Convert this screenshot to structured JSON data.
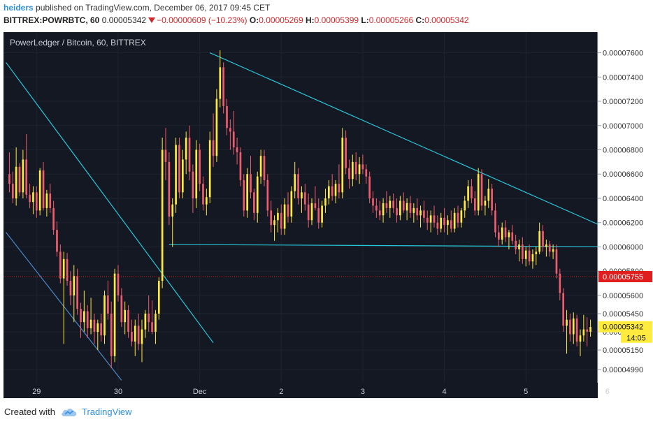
{
  "header": {
    "username": "heiders",
    "published_text": "published on TradingView.com, December 06, 2017 09:45 CET",
    "symbol": "BITTREX:POWRBTC, 60",
    "last": "0.00005342",
    "change": "−0.00000609 (−10.23%)",
    "o_label": "O:",
    "o_value": "0.00005269",
    "h_label": "H:",
    "h_value": "0.00005399",
    "l_label": "L:",
    "l_value": "0.00005266",
    "c_label": "C:",
    "c_value": "0.00005342"
  },
  "chart_data": {
    "type": "candlestick",
    "title": "PowerLedger / Bitcoin, 60, BITTREX",
    "timeframe": "60",
    "exchange": "BITTREX",
    "ylim": [
      4.88e-05,
      7.77e-05
    ],
    "x_tick_labels": [
      "29",
      "30",
      "Dec",
      "2",
      "3",
      "4",
      "5",
      "6"
    ],
    "x_tick_index": [
      8,
      32,
      56,
      80,
      104,
      128,
      152,
      176
    ],
    "y_tick_labels": [
      "0.00007600",
      "0.00007400",
      "0.00007200",
      "0.00007000",
      "0.00006800",
      "0.00006600",
      "0.00006400",
      "0.00006200",
      "0.00006000",
      "0.00005800",
      "0.00005600",
      "0.00005450",
      "0.00005300",
      "0.00005150",
      "0.00004990"
    ],
    "y_tick_values": [
      7.6e-05,
      7.4e-05,
      7.2e-05,
      7e-05,
      6.8e-05,
      6.6e-05,
      6.4e-05,
      6.2e-05,
      6e-05,
      5.8e-05,
      5.6e-05,
      5.45e-05,
      5.3e-05,
      5.15e-05,
      4.99e-05
    ],
    "price_line": {
      "value": 5.755e-05,
      "label": "0.00005755",
      "color": "#e01e1e"
    },
    "last_price": {
      "value": 5.342e-05,
      "label": "0.00005342",
      "countdown": "14:05",
      "color": "#ffeb3b"
    },
    "trendlines": [
      {
        "from": [
          -1,
          7.52e-05
        ],
        "to": [
          60,
          5.21e-05
        ],
        "color": "#26c6da"
      },
      {
        "from": [
          -1,
          6.12e-05
        ],
        "to": [
          33,
          4.9e-05
        ],
        "color": "#4a86c8"
      },
      {
        "from": [
          59,
          7.6e-05
        ],
        "to": [
          185,
          6.04e-05
        ],
        "color": "#26c6da"
      },
      {
        "from": [
          47,
          6.02e-05
        ],
        "to": [
          185,
          6e-05
        ],
        "color": "#26c6da"
      }
    ],
    "candle_colors": {
      "up": "#ffeb3b",
      "down": "#ef5c6e"
    },
    "candles": [
      [
        6.6e-05,
        6.78e-05,
        6.45e-05,
        6.52e-05
      ],
      [
        6.52e-05,
        6.62e-05,
        6.36e-05,
        6.4e-05
      ],
      [
        6.4e-05,
        6.82e-05,
        6.34e-05,
        6.66e-05
      ],
      [
        6.66e-05,
        6.69e-05,
        6.42e-05,
        6.45e-05
      ],
      [
        6.45e-05,
        6.8e-05,
        6.4e-05,
        6.72e-05
      ],
      [
        6.72e-05,
        6.93e-05,
        6.4e-05,
        6.43e-05
      ],
      [
        6.43e-05,
        6.52e-05,
        6.32e-05,
        6.37e-05
      ],
      [
        6.37e-05,
        6.5e-05,
        6.27e-05,
        6.45e-05
      ],
      [
        6.45e-05,
        6.5e-05,
        6.24e-05,
        6.3e-05
      ],
      [
        6.3e-05,
        6.65e-05,
        6.26e-05,
        6.63e-05
      ],
      [
        6.63e-05,
        6.7e-05,
        6.3e-05,
        6.32e-05
      ],
      [
        6.32e-05,
        6.47e-05,
        6.25e-05,
        6.44e-05
      ],
      [
        6.44e-05,
        6.52e-05,
        6.28e-05,
        6.32e-05
      ],
      [
        6.32e-05,
        6.38e-05,
        6.1e-05,
        6.14e-05
      ],
      [
        6.14e-05,
        6.21e-05,
        5.92e-05,
        5.96e-05
      ],
      [
        5.96e-05,
        6.02e-05,
        5.7e-05,
        5.74e-05
      ],
      [
        5.74e-05,
        5.96e-05,
        5.2e-05,
        5.9e-05
      ],
      [
        5.9e-05,
        5.95e-05,
        5.68e-05,
        5.72e-05
      ],
      [
        5.72e-05,
        5.8e-05,
        5.52e-05,
        5.6e-05
      ],
      [
        5.6e-05,
        5.85e-05,
        5.38e-05,
        5.76e-05
      ],
      [
        5.76e-05,
        5.82e-05,
        5.44e-05,
        5.49e-05
      ],
      [
        5.49e-05,
        5.54e-05,
        5.25e-05,
        5.38e-05
      ],
      [
        5.38e-05,
        5.64e-05,
        5.3e-05,
        5.47e-05
      ],
      [
        5.47e-05,
        5.52e-05,
        5.25e-05,
        5.33e-05
      ],
      [
        5.33e-05,
        5.58e-05,
        5.28e-05,
        5.4e-05
      ],
      [
        5.4e-05,
        5.45e-05,
        5.2e-05,
        5.3e-05
      ],
      [
        5.3e-05,
        5.4e-05,
        5.15e-05,
        5.37e-05
      ],
      [
        5.37e-05,
        5.45e-05,
        5.22e-05,
        5.27e-05
      ],
      [
        5.27e-05,
        5.64e-05,
        5.2e-05,
        5.6e-05
      ],
      [
        5.6e-05,
        5.72e-05,
        5.4e-05,
        5.45e-05
      ],
      [
        5.45e-05,
        5.55e-05,
        5e-05,
        5.1e-05
      ],
      [
        5.1e-05,
        5.82e-05,
        5.05e-05,
        5.78e-05
      ],
      [
        5.78e-05,
        5.85e-05,
        5.55e-05,
        5.6e-05
      ],
      [
        5.6e-05,
        5.66e-05,
        5.34e-05,
        5.38e-05
      ],
      [
        5.38e-05,
        5.55e-05,
        5.28e-05,
        5.48e-05
      ],
      [
        5.48e-05,
        5.52e-05,
        5.25e-05,
        5.3e-05
      ],
      [
        5.3e-05,
        5.4e-05,
        5.18e-05,
        5.22e-05
      ],
      [
        5.22e-05,
        5.4e-05,
        5.1e-05,
        5.35e-05
      ],
      [
        5.35e-05,
        5.45e-05,
        5.15e-05,
        5.2e-05
      ],
      [
        5.2e-05,
        5.4e-05,
        5.05e-05,
        5.32e-05
      ],
      [
        5.32e-05,
        5.48e-05,
        5.25e-05,
        5.45e-05
      ],
      [
        5.45e-05,
        5.6e-05,
        5.3e-05,
        5.38e-05
      ],
      [
        5.38e-05,
        5.56e-05,
        5.28e-05,
        5.3e-05
      ],
      [
        5.3e-05,
        5.48e-05,
        5.2e-05,
        5.45e-05
      ],
      [
        5.45e-05,
        5.75e-05,
        5.4e-05,
        5.72e-05
      ],
      [
        5.72e-05,
        6.9e-05,
        5.66e-05,
        6.8e-05
      ],
      [
        6.8e-05,
        6.98e-05,
        6.55e-05,
        6.7e-05
      ],
      [
        6.7e-05,
        6.78e-05,
        6.18e-05,
        6.25e-05
      ],
      [
        6.25e-05,
        6.4e-05,
        6e-05,
        6.35e-05
      ],
      [
        6.35e-05,
        6.9e-05,
        6.28e-05,
        6.84e-05
      ],
      [
        6.84e-05,
        6.9e-05,
        6.4e-05,
        6.45e-05
      ],
      [
        6.45e-05,
        6.8e-05,
        6.4e-05,
        6.72e-05
      ],
      [
        6.72e-05,
        6.95e-05,
        6.6e-05,
        6.9e-05
      ],
      [
        6.9e-05,
        7e-05,
        6.55e-05,
        6.62e-05
      ],
      [
        6.62e-05,
        6.68e-05,
        6.28e-05,
        6.4e-05
      ],
      [
        6.4e-05,
        6.88e-05,
        6.32e-05,
        6.8e-05
      ],
      [
        6.8e-05,
        6.85e-05,
        6.46e-05,
        6.52e-05
      ],
      [
        6.52e-05,
        6.58e-05,
        6.3e-05,
        6.35e-05
      ],
      [
        6.35e-05,
        6.48e-05,
        6.26e-05,
        6.41e-05
      ],
      [
        6.41e-05,
        6.95e-05,
        6.36e-05,
        6.88e-05
      ],
      [
        6.88e-05,
        7.1e-05,
        6.66e-05,
        6.75e-05
      ],
      [
        6.75e-05,
        7.3e-05,
        6.7e-05,
        7.22e-05
      ],
      [
        7.22e-05,
        7.62e-05,
        7.15e-05,
        7.48e-05
      ],
      [
        7.48e-05,
        7.52e-05,
        7.1e-05,
        7.16e-05
      ],
      [
        7.16e-05,
        7.22e-05,
        6.92e-05,
        6.98e-05
      ],
      [
        6.98e-05,
        7.05e-05,
        6.8e-05,
        6.95e-05
      ],
      [
        6.95e-05,
        7.12e-05,
        6.76e-05,
        6.82e-05
      ],
      [
        6.82e-05,
        6.9e-05,
        6.68e-05,
        6.78e-05
      ],
      [
        6.78e-05,
        6.82e-05,
        6.5e-05,
        6.55e-05
      ],
      [
        6.55e-05,
        6.6e-05,
        6.25e-05,
        6.3e-05
      ],
      [
        6.3e-05,
        6.65e-05,
        6.24e-05,
        6.6e-05
      ],
      [
        6.6e-05,
        6.75e-05,
        6.4e-05,
        6.45e-05
      ],
      [
        6.45e-05,
        6.48e-05,
        6.22e-05,
        6.28e-05
      ],
      [
        6.28e-05,
        6.62e-05,
        6.2e-05,
        6.58e-05
      ],
      [
        6.58e-05,
        6.8e-05,
        6.52e-05,
        6.75e-05
      ],
      [
        6.75e-05,
        6.8e-05,
        6.5e-05,
        6.55e-05
      ],
      [
        6.55e-05,
        6.6e-05,
        6.25e-05,
        6.3e-05
      ],
      [
        6.3e-05,
        6.38e-05,
        6.12e-05,
        6.18e-05
      ],
      [
        6.18e-05,
        6.26e-05,
        6.05e-05,
        6.22e-05
      ],
      [
        6.22e-05,
        6.32e-05,
        6.12e-05,
        6.28e-05
      ],
      [
        6.28e-05,
        6.35e-05,
        6.1e-05,
        6.15e-05
      ],
      [
        6.15e-05,
        6.4e-05,
        6.1e-05,
        6.35e-05
      ],
      [
        6.35e-05,
        6.45e-05,
        6.2e-05,
        6.25e-05
      ],
      [
        6.25e-05,
        6.5e-05,
        6.2e-05,
        6.46e-05
      ],
      [
        6.46e-05,
        6.7e-05,
        6.4e-05,
        6.6e-05
      ],
      [
        6.6e-05,
        6.65e-05,
        6.35e-05,
        6.4e-05
      ],
      [
        6.4e-05,
        6.5e-05,
        6.28e-05,
        6.45e-05
      ],
      [
        6.45e-05,
        6.52e-05,
        6.3e-05,
        6.35e-05
      ],
      [
        6.35e-05,
        6.44e-05,
        6.16e-05,
        6.22e-05
      ],
      [
        6.22e-05,
        6.4e-05,
        6.18e-05,
        6.36e-05
      ],
      [
        6.36e-05,
        6.5e-05,
        6.3e-05,
        6.32e-05
      ],
      [
        6.32e-05,
        6.4e-05,
        6.15e-05,
        6.2e-05
      ],
      [
        6.2e-05,
        6.38e-05,
        6.16e-05,
        6.34e-05
      ],
      [
        6.34e-05,
        6.48e-05,
        6.28e-05,
        6.4e-05
      ],
      [
        6.4e-05,
        6.55e-05,
        6.35e-05,
        6.5e-05
      ],
      [
        6.5e-05,
        6.6e-05,
        6.38e-05,
        6.42e-05
      ],
      [
        6.42e-05,
        6.55e-05,
        6.36e-05,
        6.52e-05
      ],
      [
        6.52e-05,
        6.68e-05,
        6.4e-05,
        6.45e-05
      ],
      [
        6.45e-05,
        6.98e-05,
        6.4e-05,
        6.9e-05
      ],
      [
        6.9e-05,
        6.96e-05,
        6.6e-05,
        6.65e-05
      ],
      [
        6.65e-05,
        6.72e-05,
        6.48e-05,
        6.56e-05
      ],
      [
        6.56e-05,
        6.76e-05,
        6.5e-05,
        6.7e-05
      ],
      [
        6.7e-05,
        6.78e-05,
        6.55e-05,
        6.6e-05
      ],
      [
        6.6e-05,
        6.74e-05,
        6.52e-05,
        6.68e-05
      ],
      [
        6.68e-05,
        6.76e-05,
        6.6e-05,
        6.64e-05
      ],
      [
        6.64e-05,
        6.68e-05,
        6.52e-05,
        6.58e-05
      ],
      [
        6.58e-05,
        6.62e-05,
        6.36e-05,
        6.4e-05
      ],
      [
        6.4e-05,
        6.46e-05,
        6.28e-05,
        6.34e-05
      ],
      [
        6.34e-05,
        6.4e-05,
        6.24e-05,
        6.3e-05
      ],
      [
        6.3e-05,
        6.38e-05,
        6.22e-05,
        6.26e-05
      ],
      [
        6.26e-05,
        6.4e-05,
        6.2e-05,
        6.36e-05
      ],
      [
        6.36e-05,
        6.46e-05,
        6.28e-05,
        6.32e-05
      ],
      [
        6.32e-05,
        6.42e-05,
        6.24e-05,
        6.38e-05
      ],
      [
        6.38e-05,
        6.44e-05,
        6.28e-05,
        6.32e-05
      ],
      [
        6.32e-05,
        6.4e-05,
        6.2e-05,
        6.26e-05
      ],
      [
        6.26e-05,
        6.42e-05,
        6.22e-05,
        6.38e-05
      ],
      [
        6.38e-05,
        6.45e-05,
        6.28e-05,
        6.3e-05
      ],
      [
        6.3e-05,
        6.4e-05,
        6.22e-05,
        6.36e-05
      ],
      [
        6.36e-05,
        6.42e-05,
        6.24e-05,
        6.28e-05
      ],
      [
        6.28e-05,
        6.36e-05,
        6.2e-05,
        6.32e-05
      ],
      [
        6.32e-05,
        6.4e-05,
        6.22e-05,
        6.26e-05
      ],
      [
        6.26e-05,
        6.34e-05,
        6.16e-05,
        6.3e-05
      ],
      [
        6.3e-05,
        6.38e-05,
        6.2e-05,
        6.24e-05
      ],
      [
        6.24e-05,
        6.3e-05,
        6.14e-05,
        6.2e-05
      ],
      [
        6.2e-05,
        6.3e-05,
        6.12e-05,
        6.26e-05
      ],
      [
        6.26e-05,
        6.34e-05,
        6.16e-05,
        6.2e-05
      ],
      [
        6.2e-05,
        6.26e-05,
        6.1e-05,
        6.15e-05
      ],
      [
        6.15e-05,
        6.28e-05,
        6.12e-05,
        6.24e-05
      ],
      [
        6.24e-05,
        6.32e-05,
        6.12e-05,
        6.18e-05
      ],
      [
        6.18e-05,
        6.26e-05,
        6.1e-05,
        6.22e-05
      ],
      [
        6.22e-05,
        6.3e-05,
        6.12e-05,
        6.15e-05
      ],
      [
        6.15e-05,
        6.32e-05,
        6.12e-05,
        6.28e-05
      ],
      [
        6.28e-05,
        6.34e-05,
        6.16e-05,
        6.2e-05
      ],
      [
        6.2e-05,
        6.32e-05,
        6.16e-05,
        6.3e-05
      ],
      [
        6.3e-05,
        6.42e-05,
        6.24e-05,
        6.38e-05
      ],
      [
        6.38e-05,
        6.55e-05,
        6.32e-05,
        6.5e-05
      ],
      [
        6.5e-05,
        6.56e-05,
        6.36e-05,
        6.4e-05
      ],
      [
        6.4e-05,
        6.46e-05,
        6.26e-05,
        6.3e-05
      ],
      [
        6.3e-05,
        6.65e-05,
        6.26e-05,
        6.6e-05
      ],
      [
        6.6e-05,
        6.64e-05,
        6.3e-05,
        6.34e-05
      ],
      [
        6.34e-05,
        6.42e-05,
        6.26e-05,
        6.38e-05
      ],
      [
        6.38e-05,
        6.56e-05,
        6.32e-05,
        6.48e-05
      ],
      [
        6.48e-05,
        6.52e-05,
        6.26e-05,
        6.3e-05
      ],
      [
        6.3e-05,
        6.36e-05,
        6.08e-05,
        6.12e-05
      ],
      [
        6.12e-05,
        6.18e-05,
        6e-05,
        6.06e-05
      ],
      [
        6.06e-05,
        6.2e-05,
        6.02e-05,
        6.16e-05
      ],
      [
        6.16e-05,
        6.22e-05,
        6.04e-05,
        6.08e-05
      ],
      [
        6.08e-05,
        6.14e-05,
        5.98e-05,
        6.12e-05
      ],
      [
        6.12e-05,
        6.18e-05,
        6.02e-05,
        6.05e-05
      ],
      [
        6.05e-05,
        6.1e-05,
        5.94e-05,
        5.98e-05
      ],
      [
        5.98e-05,
        6.06e-05,
        5.88e-05,
        6.02e-05
      ],
      [
        6.02e-05,
        6.08e-05,
        5.86e-05,
        5.9e-05
      ],
      [
        5.9e-05,
        6e-05,
        5.84e-05,
        5.97e-05
      ],
      [
        5.97e-05,
        6.02e-05,
        5.85e-05,
        5.88e-05
      ],
      [
        5.88e-05,
        5.98e-05,
        5.82e-05,
        5.94e-05
      ],
      [
        5.94e-05,
        6e-05,
        5.85e-05,
        5.96e-05
      ],
      [
        5.96e-05,
        6.2e-05,
        5.94e-05,
        6.13e-05
      ],
      [
        6.13e-05,
        6.18e-05,
        5.96e-05,
        6e-05
      ],
      [
        6e-05,
        6.06e-05,
        5.92e-05,
        6.02e-05
      ],
      [
        6.02e-05,
        6.05e-05,
        5.92e-05,
        5.96e-05
      ],
      [
        5.96e-05,
        6.02e-05,
        5.9e-05,
        5.98e-05
      ],
      [
        5.98e-05,
        6.02e-05,
        5.74e-05,
        5.78e-05
      ],
      [
        5.78e-05,
        5.82e-05,
        5.56e-05,
        5.62e-05
      ],
      [
        5.62e-05,
        5.66e-05,
        5.3e-05,
        5.35e-05
      ],
      [
        5.35e-05,
        5.48e-05,
        5.12e-05,
        5.4e-05
      ],
      [
        5.4e-05,
        5.45e-05,
        5.22e-05,
        5.28e-05
      ],
      [
        5.28e-05,
        5.46e-05,
        5.2e-05,
        5.41e-05
      ],
      [
        5.41e-05,
        5.44e-05,
        5.18e-05,
        5.22e-05
      ],
      [
        5.22e-05,
        5.32e-05,
        5.1e-05,
        5.27e-05
      ],
      [
        5.27e-05,
        5.44e-05,
        5.22e-05,
        5.32e-05
      ],
      [
        5.32e-05,
        5.42e-05,
        5.18e-05,
        5.3e-05
      ],
      [
        5.3e-05,
        5.4e-05,
        5.26e-05,
        5.34e-05
      ]
    ]
  },
  "footer": {
    "created_with": "Created with",
    "brand": "TradingView"
  }
}
